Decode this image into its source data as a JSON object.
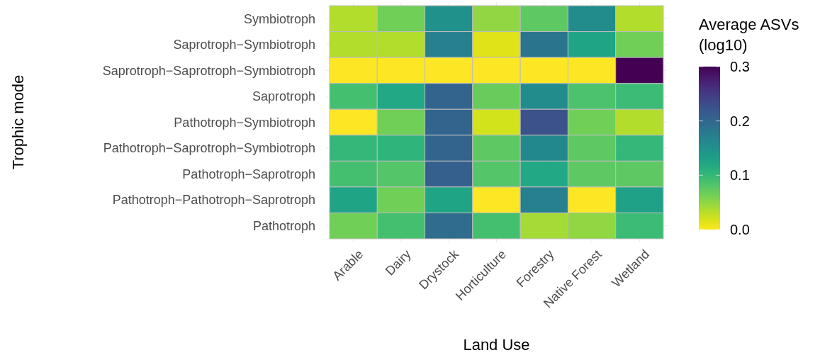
{
  "chart_data": {
    "type": "heatmap",
    "xlabel": "Land Use",
    "ylabel": "Trophic mode",
    "clabel": "Average ASVs (log10)",
    "categories": [
      "Arable",
      "Dairy",
      "Drystock",
      "Horticulture",
      "Forestry",
      "Native Forest",
      "Wetland"
    ],
    "y_categories": [
      "Symbiotroph",
      "Saprotroph−Symbiotroph",
      "Saprotroph−Saprotroph−Symbiotroph",
      "Saprotroph",
      "Pathotroph−Symbiotroph",
      "Pathotroph−Saprotroph−Symbiotroph",
      "Pathotroph−Saprotroph",
      "Pathotroph−Pathotroph−Saprotroph",
      "Pathotroph"
    ],
    "cells": [
      [
        0.035,
        0.065,
        0.15,
        0.05,
        0.075,
        0.155,
        0.035
      ],
      [
        0.035,
        0.035,
        0.17,
        0.015,
        0.185,
        0.125,
        0.065
      ],
      [
        0,
        0,
        0,
        0,
        0,
        0,
        0.3
      ],
      [
        0.09,
        0.12,
        0.205,
        0.07,
        0.155,
        0.085,
        0.095
      ],
      [
        0,
        0.065,
        0.205,
        0.02,
        0.225,
        0.065,
        0.035
      ],
      [
        0.1,
        0.105,
        0.205,
        0.075,
        0.16,
        0.075,
        0.1
      ],
      [
        0.09,
        0.08,
        0.21,
        0.08,
        0.12,
        0.075,
        0.075
      ],
      [
        0.125,
        0.065,
        0.125,
        0,
        0.17,
        0,
        0.13
      ],
      [
        0.065,
        0.09,
        0.195,
        0.09,
        0.04,
        0.05,
        0.095
      ]
    ],
    "grid": true,
    "clim": [
      0,
      0.3
    ],
    "cticks": [
      {
        "value": 0,
        "label": "0.0"
      },
      0.1,
      0.2,
      0.3
    ]
  }
}
